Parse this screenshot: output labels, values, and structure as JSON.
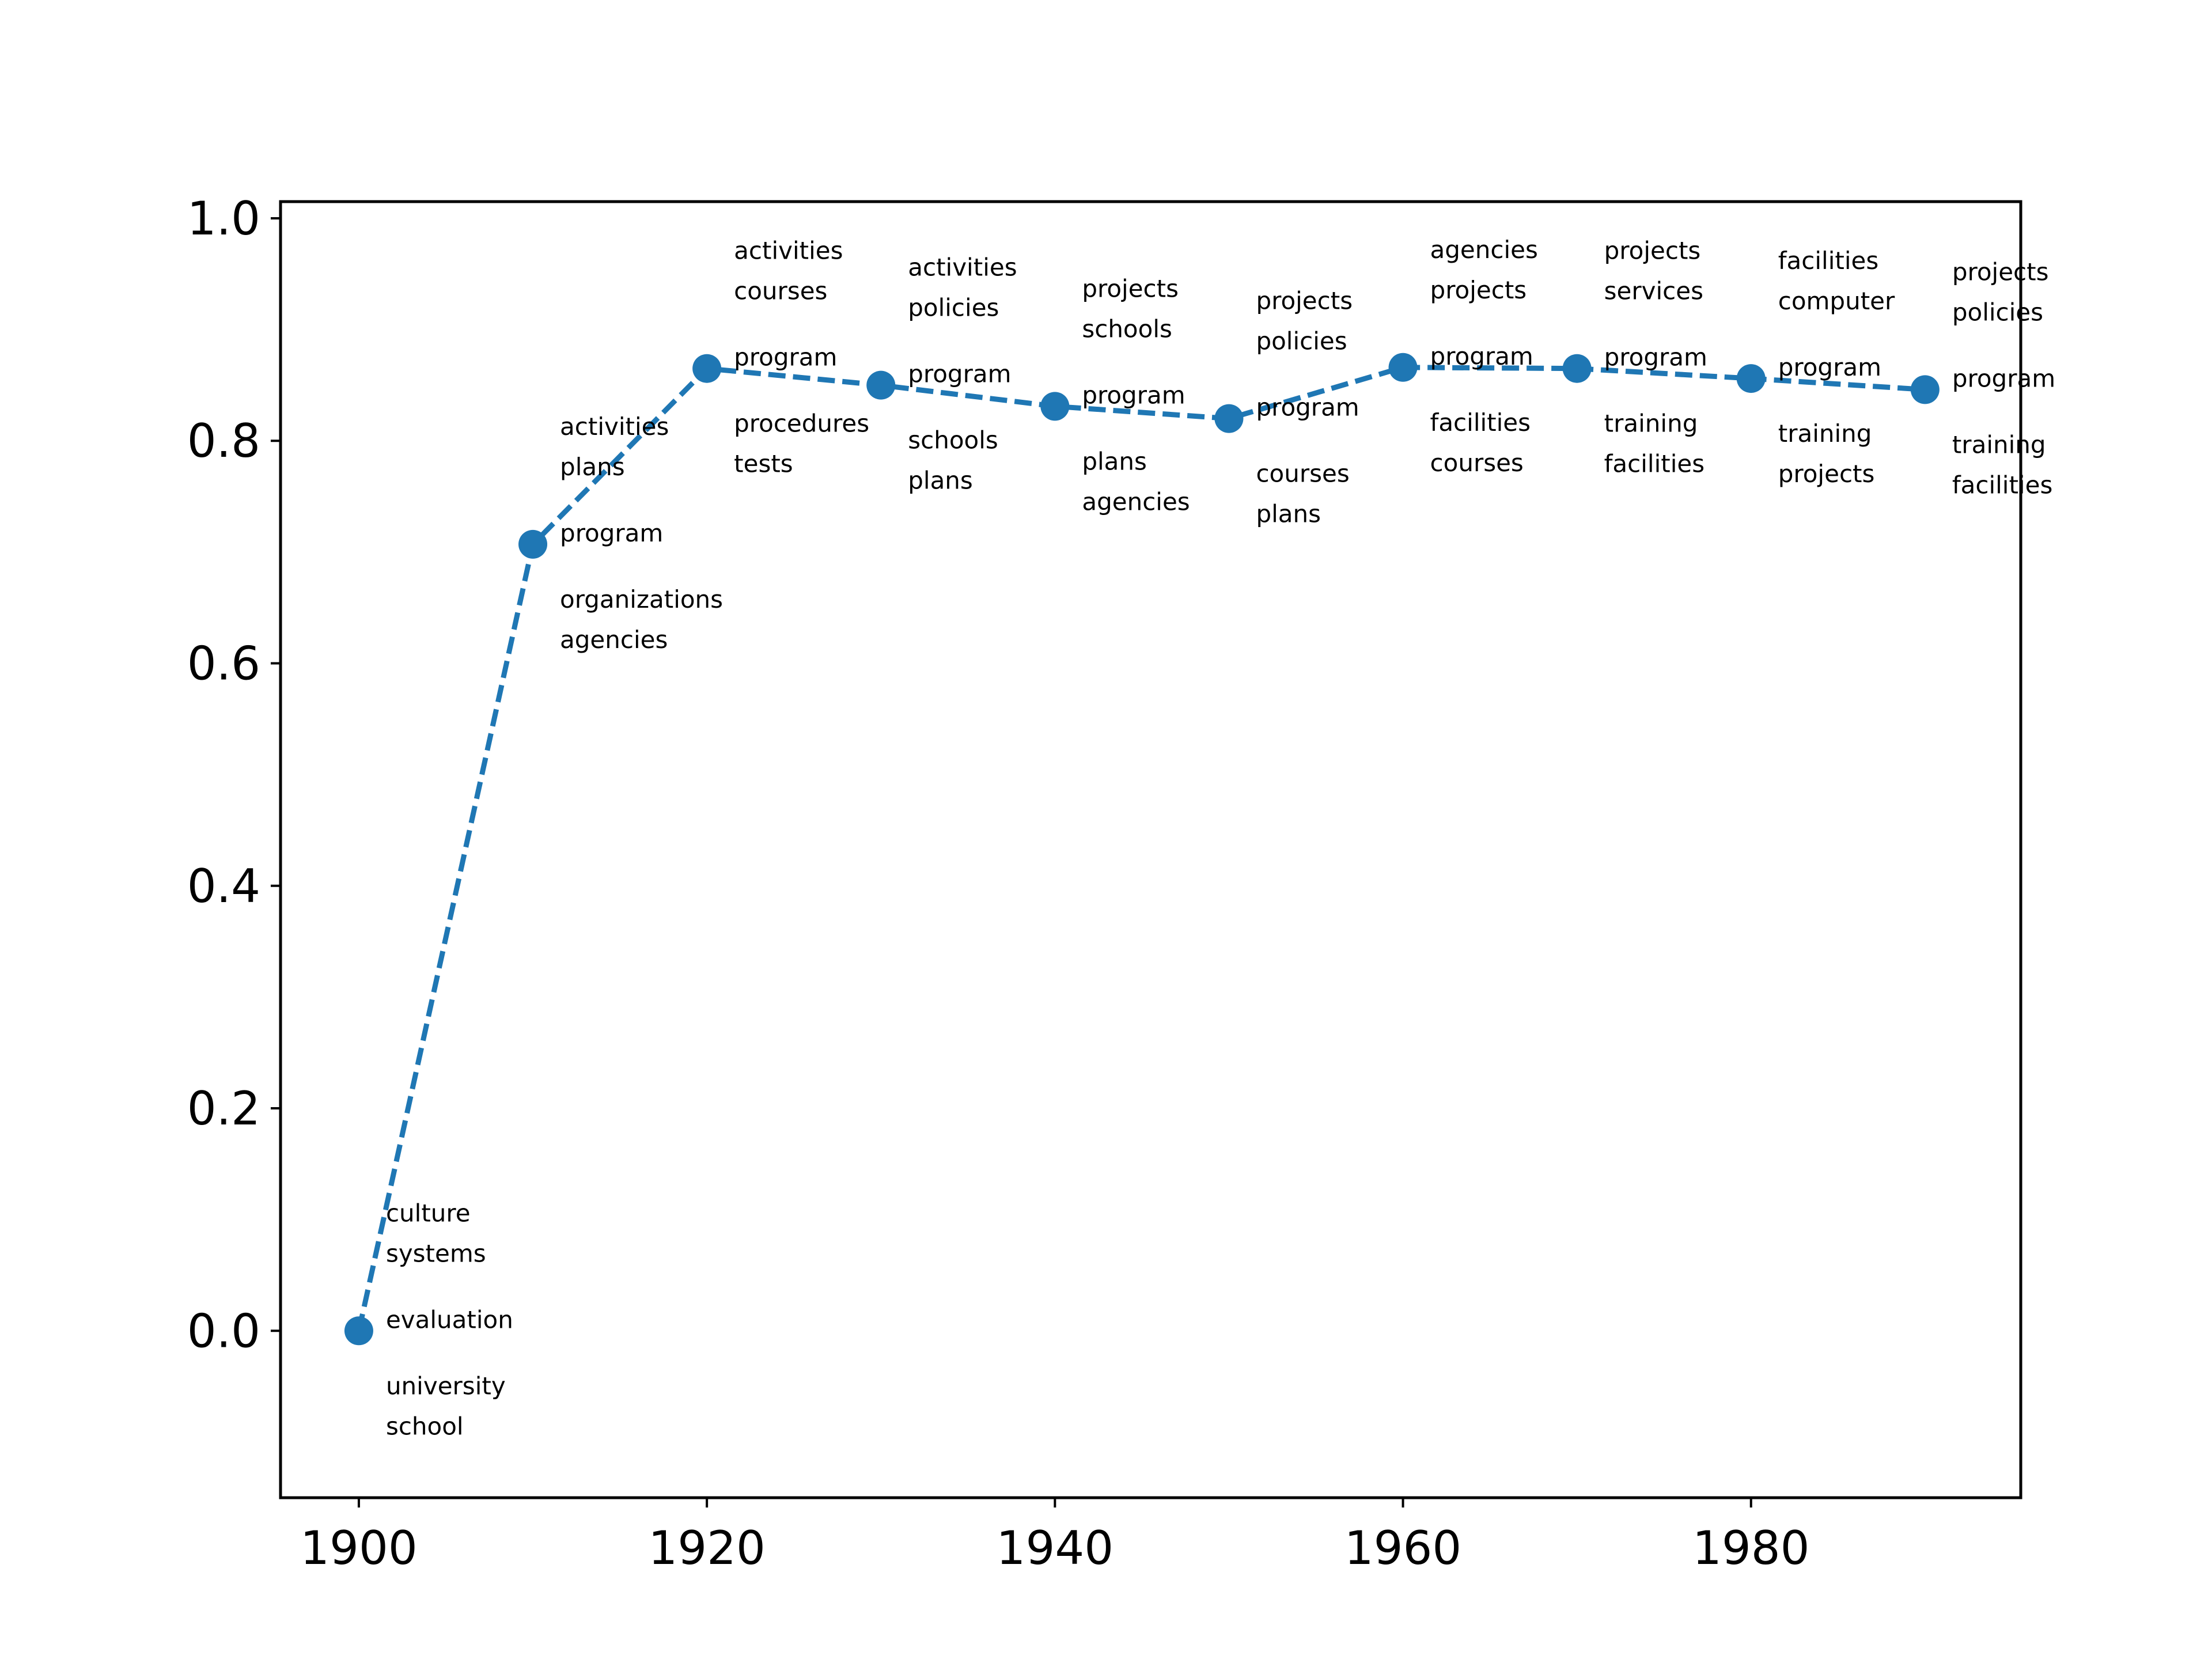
{
  "chart_data": {
    "type": "line",
    "title": "",
    "xlabel": "",
    "ylabel": "",
    "xlim": [
      1895.5,
      1995.5
    ],
    "ylim": [
      -0.15,
      1.015
    ],
    "grid": false,
    "color": "#1f77b4",
    "line_style": "dashed",
    "marker": "circle",
    "x_ticks": [
      "1900",
      "1920",
      "1940",
      "1960",
      "1980"
    ],
    "y_ticks": [
      "0.0",
      "0.2",
      "0.4",
      "0.6",
      "0.8",
      "1.0"
    ],
    "series": [
      {
        "x": [
          1900,
          1910,
          1920,
          1930,
          1940,
          1950,
          1960,
          1970,
          1980,
          1990
        ],
        "values": [
          0.0,
          0.707,
          0.865,
          0.85,
          0.831,
          0.82,
          0.866,
          0.865,
          0.856,
          0.846
        ]
      }
    ],
    "annotations": [
      {
        "above": [
          "culture",
          "systems"
        ],
        "term": "evaluation",
        "below": [
          "university",
          "school"
        ]
      },
      {
        "above": [
          "activities",
          "plans"
        ],
        "term": "program",
        "below": [
          "organizations",
          "agencies"
        ]
      },
      {
        "above": [
          "activities",
          "courses"
        ],
        "term": "program",
        "below": [
          "procedures",
          "tests"
        ]
      },
      {
        "above": [
          "activities",
          "policies"
        ],
        "term": "program",
        "below": [
          "schools",
          "plans"
        ]
      },
      {
        "above": [
          "projects",
          "schools"
        ],
        "term": "program",
        "below": [
          "plans",
          "agencies"
        ]
      },
      {
        "above": [
          "projects",
          "policies"
        ],
        "term": "program",
        "below": [
          "courses",
          "plans"
        ]
      },
      {
        "above": [
          "agencies",
          "projects"
        ],
        "term": "program",
        "below": [
          "facilities",
          "courses"
        ]
      },
      {
        "above": [
          "projects",
          "services"
        ],
        "term": "program",
        "below": [
          "training",
          "facilities"
        ]
      },
      {
        "above": [
          "facilities",
          "computer"
        ],
        "term": "program",
        "below": [
          "training",
          "projects"
        ]
      },
      {
        "above": [
          "projects",
          "policies"
        ],
        "term": "program",
        "below": [
          "training",
          "facilities"
        ]
      }
    ]
  }
}
